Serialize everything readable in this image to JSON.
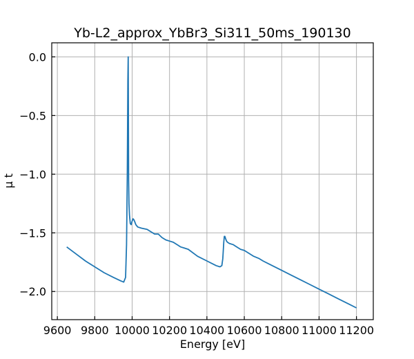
{
  "chart_data": {
    "type": "line",
    "title": "Yb-L2_approx_YbBr3_Si311_50ms_190130",
    "xlabel": "Energy [eV]",
    "ylabel": "μ t",
    "xlim": [
      9570,
      11290
    ],
    "ylim": [
      -2.24,
      0.12
    ],
    "xticks": [
      9600,
      9800,
      10000,
      10200,
      10400,
      10600,
      10800,
      11000,
      11200
    ],
    "xtick_labels": [
      "9600",
      "9800",
      "10000",
      "10200",
      "10400",
      "10600",
      "10800",
      "11000",
      "11200"
    ],
    "yticks": [
      0.0,
      -0.5,
      -1.0,
      -1.5,
      -2.0
    ],
    "ytick_labels": [
      "0.0",
      "−0.5",
      "−1.0",
      "−1.5",
      "−2.0"
    ],
    "grid": true,
    "line_color": "#1f77b4",
    "series": [
      {
        "x": [
          9650,
          9700,
          9750,
          9800,
          9850,
          9900,
          9940,
          9955,
          9965,
          9970,
          9974,
          9977,
          9979,
          9980,
          9981,
          9983,
          9986,
          9990,
          9995,
          10000,
          10005,
          10010,
          10015,
          10020,
          10030,
          10050,
          10080,
          10100,
          10120,
          10140,
          10160,
          10180,
          10200,
          10220,
          10240,
          10260,
          10280,
          10300,
          10350,
          10400,
          10450,
          10470,
          10480,
          10485,
          10490,
          10493,
          10496,
          10500,
          10505,
          10510,
          10520,
          10540,
          10560,
          10580,
          10600,
          10620,
          10650,
          10680,
          10700,
          10750,
          10800,
          10850,
          10900,
          10950,
          11000,
          11050,
          11100,
          11150,
          11200
        ],
        "y": [
          -1.62,
          -1.68,
          -1.74,
          -1.79,
          -1.84,
          -1.88,
          -1.91,
          -1.92,
          -1.88,
          -1.6,
          -1.0,
          -0.2,
          0.0,
          -0.5,
          -1.05,
          -1.25,
          -1.35,
          -1.42,
          -1.43,
          -1.4,
          -1.38,
          -1.39,
          -1.41,
          -1.43,
          -1.45,
          -1.46,
          -1.47,
          -1.49,
          -1.51,
          -1.51,
          -1.54,
          -1.56,
          -1.57,
          -1.58,
          -1.6,
          -1.62,
          -1.63,
          -1.64,
          -1.7,
          -1.74,
          -1.78,
          -1.79,
          -1.78,
          -1.72,
          -1.58,
          -1.53,
          -1.53,
          -1.55,
          -1.57,
          -1.58,
          -1.59,
          -1.6,
          -1.62,
          -1.64,
          -1.65,
          -1.67,
          -1.7,
          -1.72,
          -1.74,
          -1.78,
          -1.82,
          -1.86,
          -1.9,
          -1.94,
          -1.98,
          -2.02,
          -2.06,
          -2.1,
          -2.14
        ]
      }
    ]
  }
}
